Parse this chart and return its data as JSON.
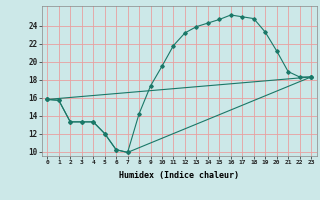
{
  "title": "",
  "xlabel": "Humidex (Indice chaleur)",
  "ylabel": "",
  "background_color": "#cce8e8",
  "grid_color": "#e8a0a0",
  "line_color": "#1a7868",
  "xlim": [
    -0.5,
    23.5
  ],
  "ylim": [
    9.5,
    26.2
  ],
  "xticks": [
    0,
    1,
    2,
    3,
    4,
    5,
    6,
    7,
    8,
    9,
    10,
    11,
    12,
    13,
    14,
    15,
    16,
    17,
    18,
    19,
    20,
    21,
    22,
    23
  ],
  "yticks": [
    10,
    12,
    14,
    16,
    18,
    20,
    22,
    24
  ],
  "lines": [
    {
      "x": [
        0,
        1,
        2,
        3,
        4,
        5,
        6,
        7,
        8,
        9,
        10,
        11,
        12,
        13,
        14,
        15,
        16,
        17,
        18,
        19,
        20,
        21,
        22,
        23
      ],
      "y": [
        15.8,
        15.7,
        13.3,
        13.3,
        13.3,
        12.0,
        10.2,
        9.9,
        14.2,
        17.3,
        19.5,
        21.8,
        23.2,
        23.9,
        24.3,
        24.7,
        25.2,
        25.0,
        24.8,
        23.3,
        21.2,
        18.9,
        18.3,
        18.3
      ]
    },
    {
      "x": [
        0,
        1,
        2,
        3,
        4,
        5,
        6,
        7,
        23
      ],
      "y": [
        15.8,
        15.7,
        13.3,
        13.3,
        13.3,
        12.0,
        10.2,
        9.9,
        18.3
      ]
    },
    {
      "x": [
        0,
        23
      ],
      "y": [
        15.8,
        18.3
      ]
    }
  ]
}
